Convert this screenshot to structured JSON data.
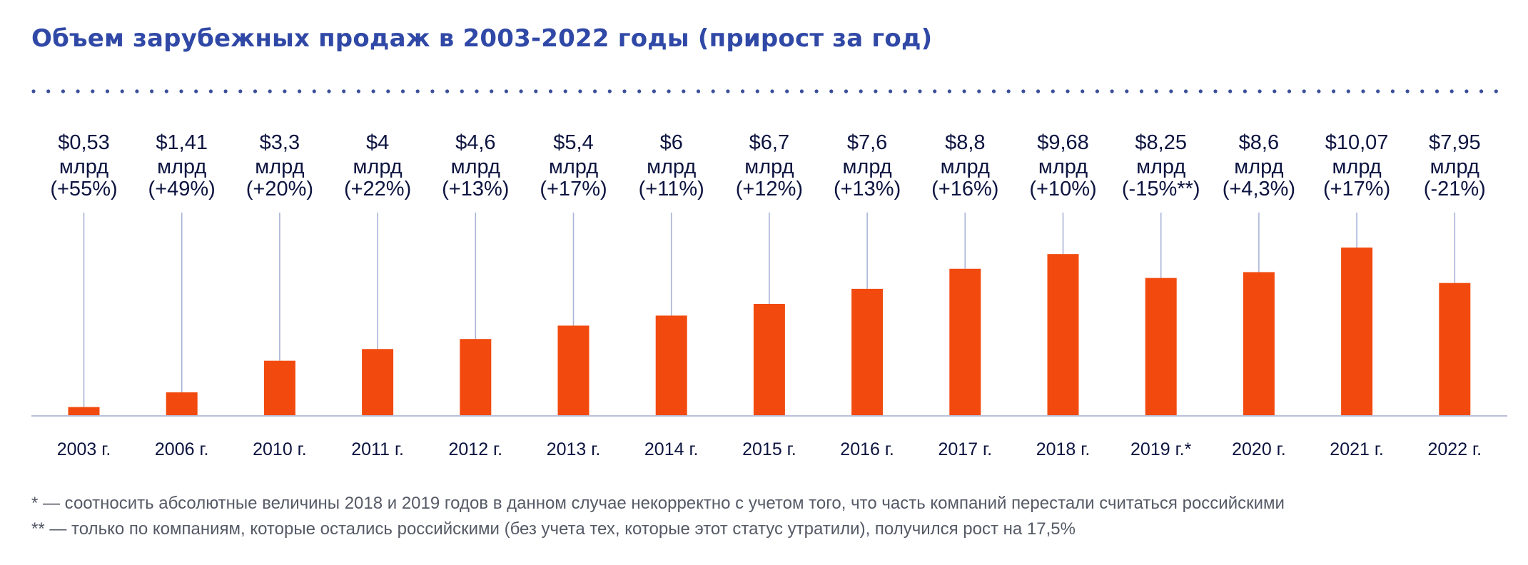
{
  "title": "Объем зарубежных продаж в 2003-2022 годы (прирост за год)",
  "colors": {
    "title": "#3048a6",
    "bar": "#f24a0e",
    "label": "#0d1440",
    "leader_line": "#aab3d6",
    "axis": "#b8c0d8",
    "dots": "#3a4f9a",
    "footnote": "#555a66"
  },
  "footnotes": [
    "* — соотносить абсолютные величины 2018 и 2019 годов в данном случае некорректно с учетом того, что часть компаний перестали считаться российскими",
    "** — только по компаниям, которые остались российскими (без учета тех, которые этот статус утратили), получился рост на 17,5%"
  ],
  "chart_data": {
    "type": "bar",
    "title": "Объем зарубежных продаж в 2003-2022 годы (прирост за год)",
    "xlabel": "",
    "ylabel": "",
    "unit": "млрд долларов",
    "grid": false,
    "categories": [
      "2003 г.",
      "2006 г.",
      "2010 г.",
      "2011 г.",
      "2012 г.",
      "2013 г.",
      "2014 г.",
      "2015 г.",
      "2016 г.",
      "2017 г.",
      "2018 г.",
      "2019 г.*",
      "2020 г.",
      "2021 г.",
      "2022 г."
    ],
    "values": [
      0.53,
      1.41,
      3.3,
      4,
      4.6,
      5.4,
      6,
      6.7,
      7.6,
      8.8,
      9.68,
      8.25,
      8.6,
      10.07,
      7.95
    ],
    "value_labels": [
      "$0,53",
      "$1,41",
      "$3,3",
      "$4",
      "$4,6",
      "$5,4",
      "$6",
      "$6,7",
      "$7,6",
      "$8,8",
      "$9,68",
      "$8,25",
      "$8,6",
      "$10,07",
      "$7,95"
    ],
    "unit_label": "млрд",
    "change_labels": [
      "(+55%)",
      "(+49%)",
      "(+20%)",
      "(+22%)",
      "(+13%)",
      "(+17%)",
      "(+11%)",
      "(+12%)",
      "(+13%)",
      "(+16%)",
      "(+10%)",
      "(-15%**)",
      "(+4,3%)",
      "(+17%)",
      "(-21%)"
    ],
    "ylim": [
      0,
      10.07
    ]
  }
}
